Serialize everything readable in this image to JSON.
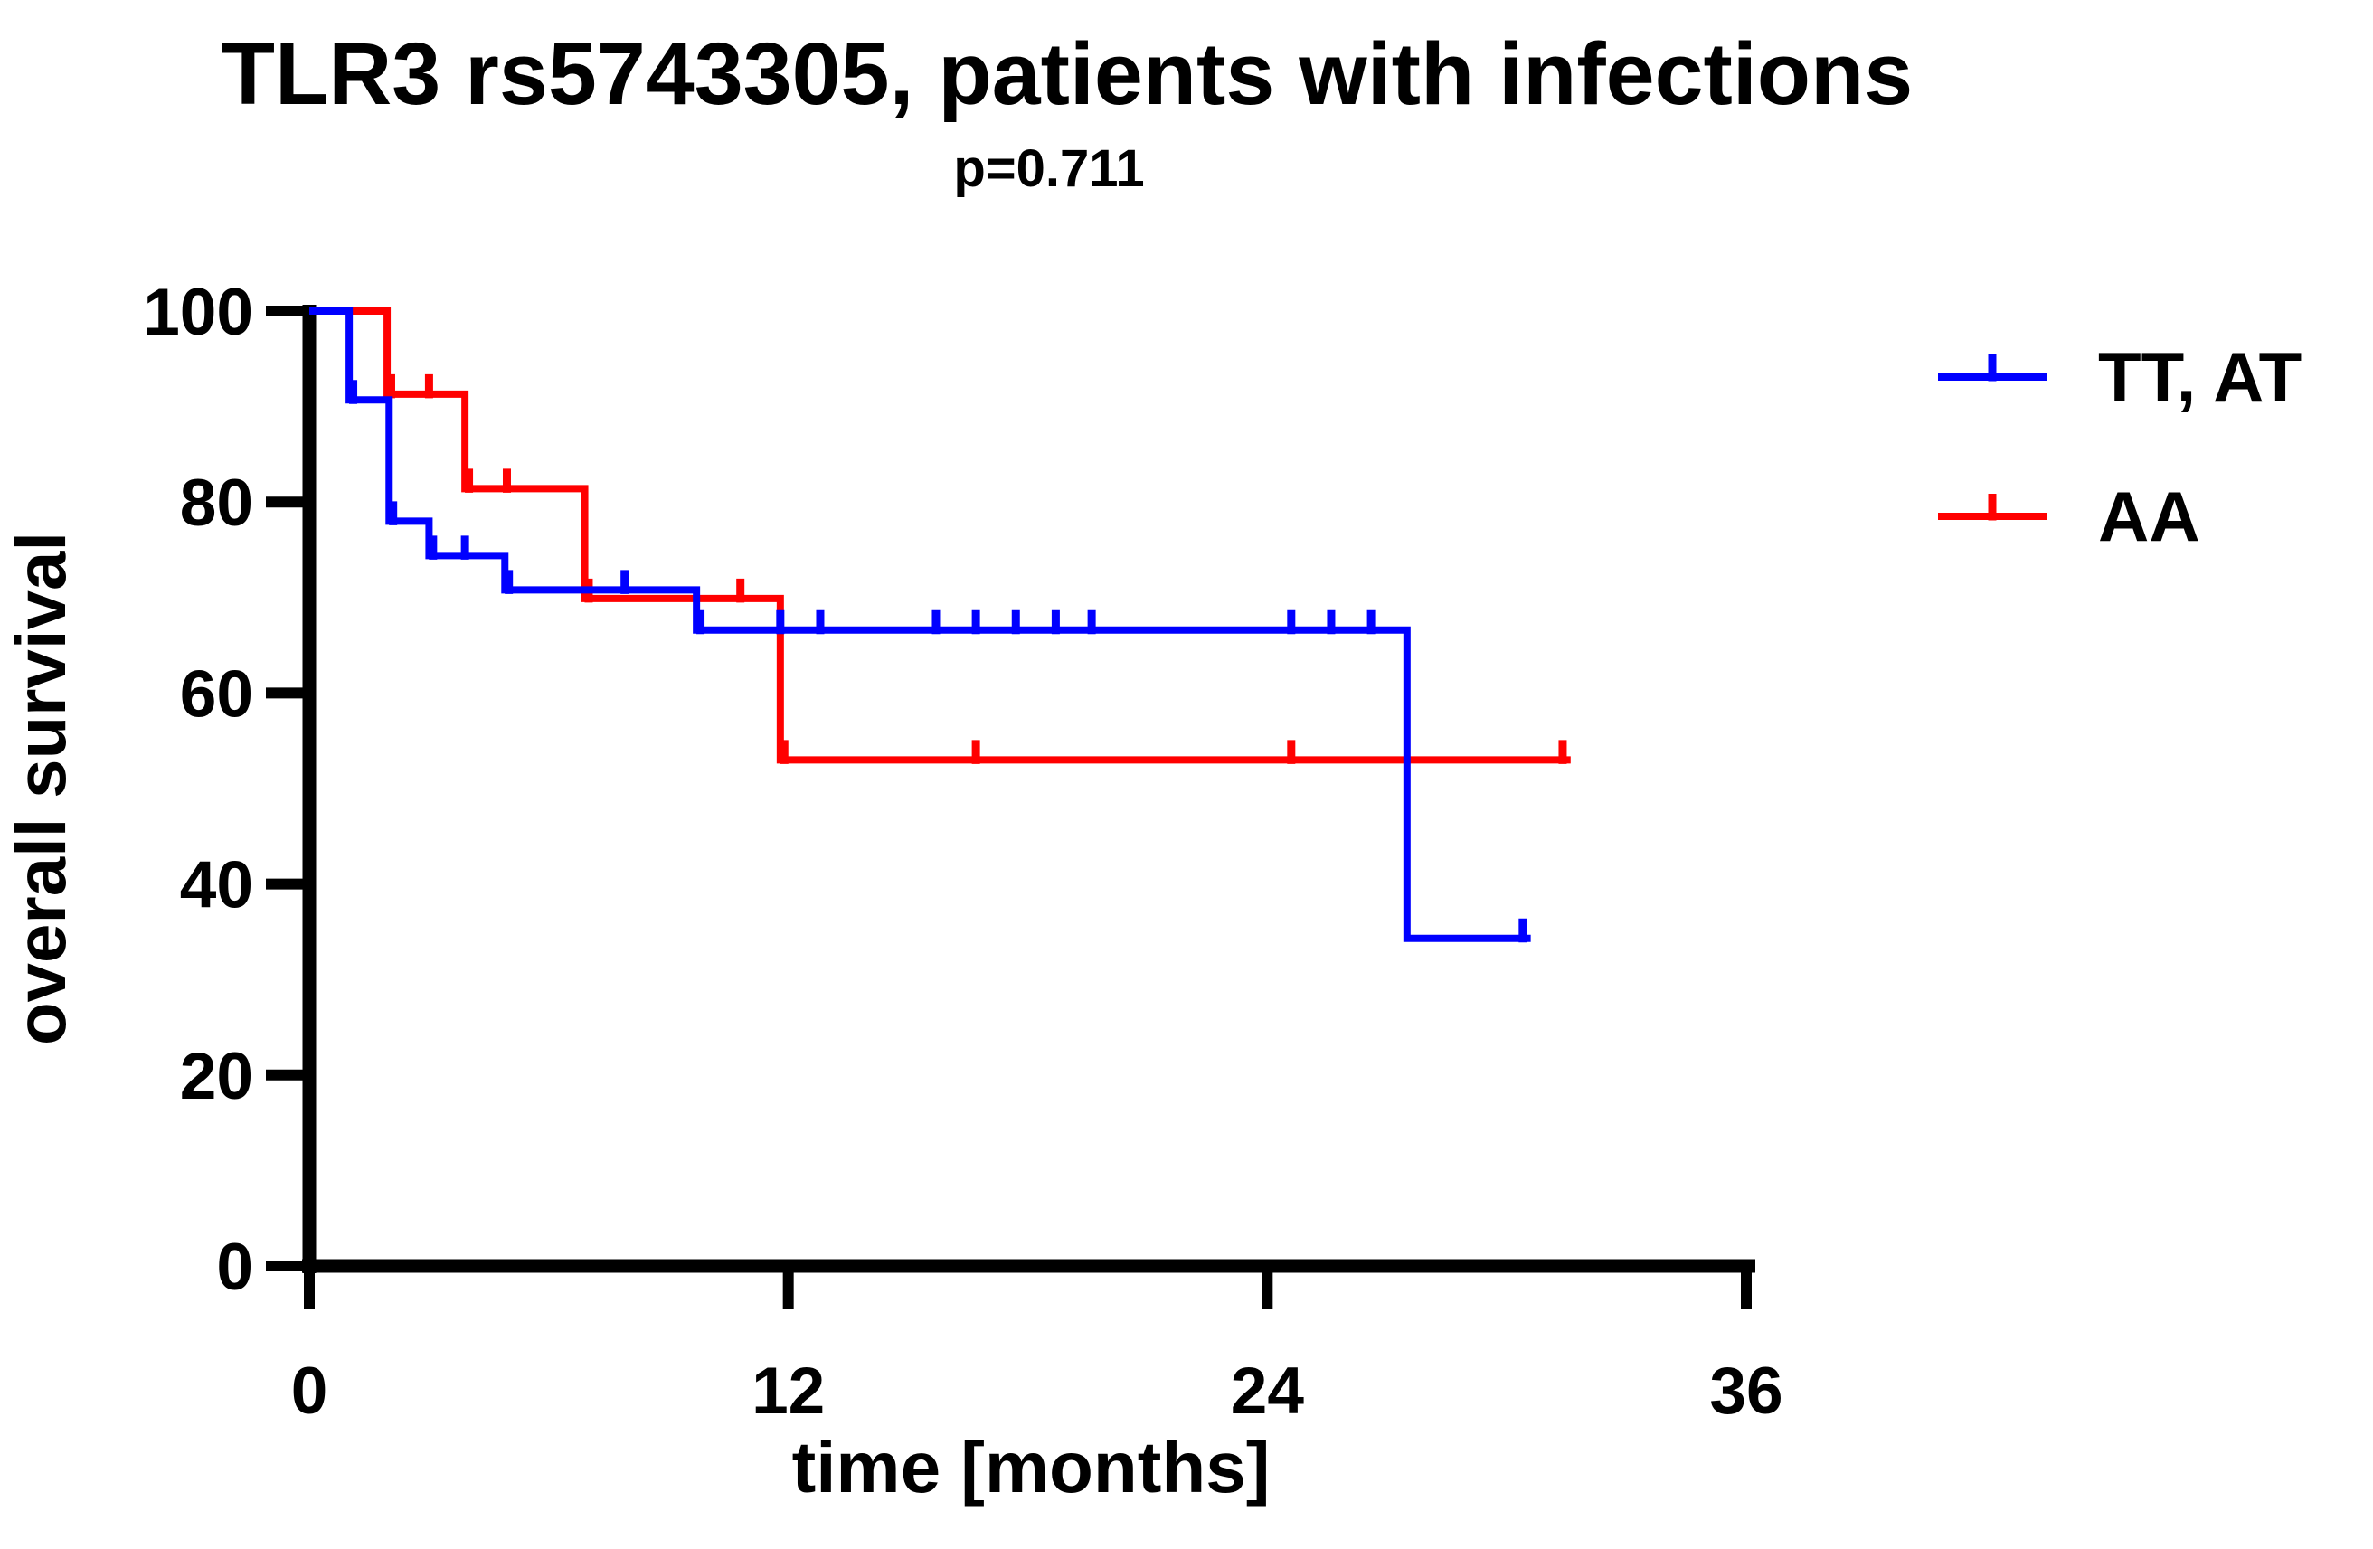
{
  "chart_data": {
    "type": "line",
    "subtype": "kaplan_meier_step",
    "title": "TLR3 rs5743305, patients with infections",
    "p_value_label": "p=0.711",
    "xlabel": "time [months]",
    "ylabel": "overall survival",
    "xlim": [
      0,
      36
    ],
    "ylim": [
      0,
      100
    ],
    "x_ticks": [
      0,
      12,
      24,
      36
    ],
    "y_ticks": [
      100,
      80,
      60,
      40,
      20,
      0
    ],
    "grid": false,
    "legend_position": "right",
    "series": [
      {
        "name": "TT, AT",
        "color": "#0000ff",
        "points": [
          [
            0,
            100
          ],
          [
            1.0,
            90.7
          ],
          [
            2.0,
            78.0
          ],
          [
            3.0,
            74.4
          ],
          [
            4.9,
            70.8
          ],
          [
            9.7,
            66.6
          ],
          [
            27.5,
            34.3
          ]
        ],
        "end_time": 30.6,
        "censor_times": [
          1.1,
          2.1,
          3.1,
          3.9,
          5.0,
          7.9,
          9.8,
          11.8,
          12.8,
          15.7,
          16.7,
          17.7,
          18.7,
          19.6,
          24.6,
          25.6,
          26.6,
          30.4
        ]
      },
      {
        "name": "AA",
        "color": "#ff0000",
        "points": [
          [
            0,
            100
          ],
          [
            1.95,
            91.3
          ],
          [
            3.9,
            81.4
          ],
          [
            6.9,
            69.9
          ],
          [
            11.8,
            53.0
          ]
        ],
        "end_time": 31.6,
        "censor_times": [
          2.05,
          3.0,
          4.0,
          4.95,
          7.0,
          10.8,
          11.9,
          16.7,
          24.6,
          31.4
        ]
      }
    ]
  }
}
